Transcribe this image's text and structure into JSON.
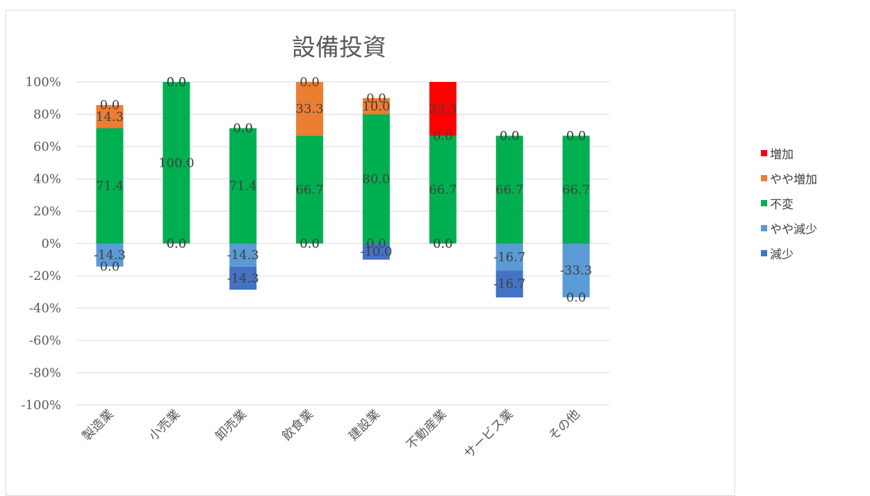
{
  "chart_data": {
    "type": "bar",
    "stacked": true,
    "title": "設備投資",
    "categories": [
      "製造業",
      "小売業",
      "卸売業",
      "飲食業",
      "建設業",
      "不動産業",
      "サービス業",
      "その他"
    ],
    "y_ticks": [
      "100%",
      "80%",
      "60%",
      "40%",
      "20%",
      "0%",
      "-20%",
      "-40%",
      "-60%",
      "-80%",
      "-100%"
    ],
    "ylim": [
      -100,
      100
    ],
    "grid": true,
    "legend_position": "right",
    "series": [
      {
        "name": "増加",
        "color": "#ff0000",
        "values": [
          0.0,
          0.0,
          0.0,
          0.0,
          0.0,
          33.3,
          0.0,
          0.0
        ],
        "direction": "up"
      },
      {
        "name": "やや増加",
        "color": "#ed7d31",
        "values": [
          14.3,
          0.0,
          0.0,
          33.3,
          10.0,
          0.0,
          0.0,
          0.0
        ],
        "direction": "up"
      },
      {
        "name": "不変",
        "color": "#00b050",
        "values": [
          71.4,
          100.0,
          71.4,
          66.7,
          80.0,
          66.7,
          66.7,
          66.7
        ],
        "direction": "up"
      },
      {
        "name": "やや減少",
        "color": "#5b9bd5",
        "values": [
          -14.3,
          0.0,
          -14.3,
          0.0,
          0.0,
          0.0,
          -16.7,
          -33.3
        ],
        "direction": "down"
      },
      {
        "name": "減少",
        "color": "#4472c4",
        "values": [
          0.0,
          0.0,
          -14.3,
          0.0,
          -10.0,
          0.0,
          -16.7,
          0.0
        ],
        "direction": "down"
      }
    ]
  },
  "legend": {
    "items": [
      {
        "label": "増加",
        "color": "#ff0000"
      },
      {
        "label": "やや増加",
        "color": "#ed7d31"
      },
      {
        "label": "不変",
        "color": "#00b050"
      },
      {
        "label": "やや減少",
        "color": "#5b9bd5"
      },
      {
        "label": "減少",
        "color": "#4472c4"
      }
    ]
  }
}
